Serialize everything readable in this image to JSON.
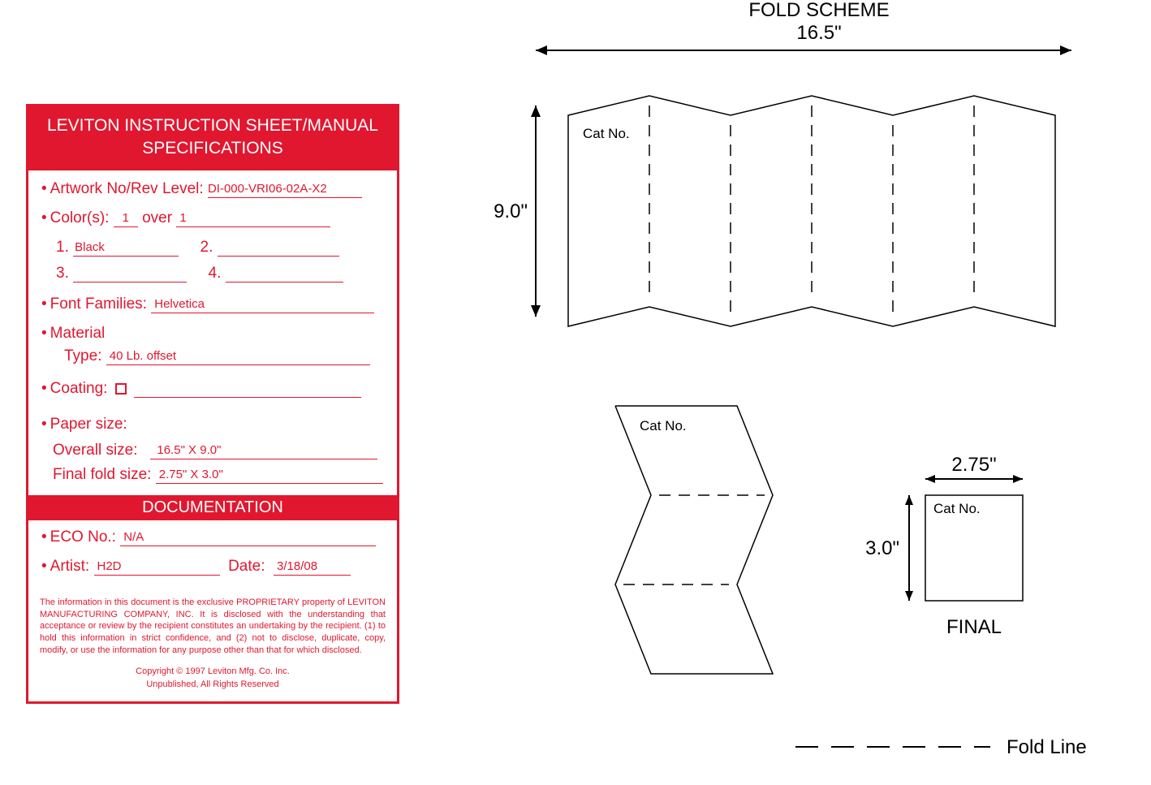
{
  "colors": {
    "brand_red": "#e1172f",
    "black": "#000000",
    "white": "#ffffff"
  },
  "spec": {
    "title_l1": "LEVITON INSTRUCTION SHEET/MANUAL",
    "title_l2": "SPECIFICATIONS",
    "artwork_label": "Artwork No/Rev Level:",
    "artwork_value": "DI-000-VRI06-02A-X2",
    "colors_label_a": "Color(s):",
    "colors_over": "over",
    "colors_count_a": "1",
    "colors_count_b": "1",
    "c1_label": "1.",
    "c1_value": "Black",
    "c2_label": "2.",
    "c2_value": "",
    "c3_label": "3.",
    "c3_value": "",
    "c4_label": "4.",
    "c4_value": "",
    "font_label": "Font Families:",
    "font_value": "Helvetica",
    "material_label": "Material",
    "type_label": "Type:",
    "type_value": "40 Lb. offset",
    "coating_label": "Coating:",
    "coating_value": "",
    "paper_label": "Paper size:",
    "overall_label": "Overall size:",
    "overall_value": "16.5\" X 9.0\"",
    "final_label": "Final fold size:",
    "final_value": "2.75\" X 3.0\""
  },
  "doc": {
    "header": "DOCUMENTATION",
    "eco_label": "ECO No.:",
    "eco_value": "N/A",
    "artist_label": "Artist:",
    "artist_value": "H2D",
    "date_label": "Date:",
    "date_value": "3/18/08",
    "legal": "The information in this document is the exclusive PROPRIETARY property of LEVITON MANUFACTURING COMPANY, INC.  It is disclosed with the understanding that acceptance or review by the recipient constitutes  an undertaking by the recipient. (1) to hold this information in strict confidence,  and (2) not to disclose, duplicate, copy, modify, or use the information for any purpose other than that for which disclosed.",
    "copyright": "Copyright © 1997 Leviton Mfg. Co. Inc.",
    "rights": "Unpublished, All Rights Reserved"
  },
  "diagram": {
    "title": "FOLD SCHEME",
    "width_dim": "16.5\"",
    "height_dim": "9.0\"",
    "catno": "Cat No.",
    "final_w": "2.75\"",
    "final_h": "3.0\"",
    "final_label": "FINAL",
    "foldline_label": "Fold Line",
    "line_color": "#000000",
    "stroke_width": 1.5,
    "dim_stroke": 2,
    "text_size": 24,
    "catno_size": 17,
    "dash": "14 10"
  }
}
